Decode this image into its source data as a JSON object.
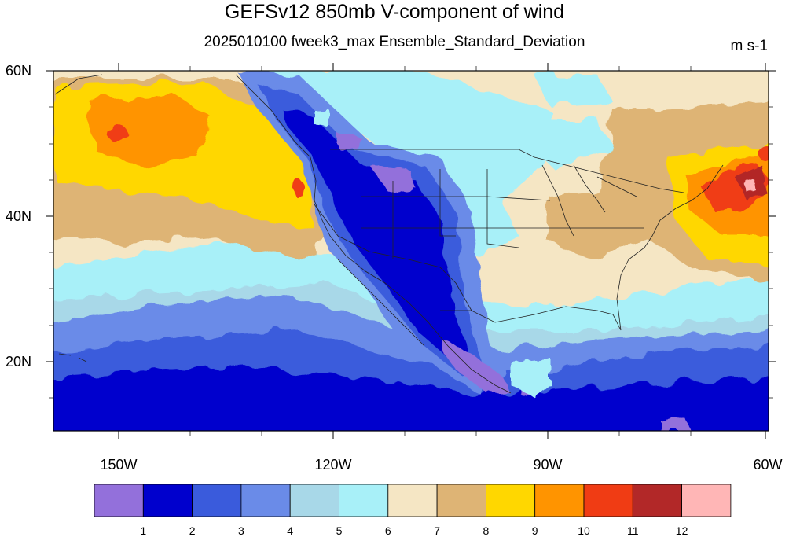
{
  "title": "GEFSv12 850mb V-component of wind",
  "subtitle": "2025010100 fweek3_max Ensemble_Standard_Deviation",
  "units": "m s-1",
  "lat_labels": [
    "60N",
    "40N",
    "20N"
  ],
  "lon_labels": [
    "150W",
    "120W",
    "90W",
    "60W"
  ],
  "colorbar": {
    "labels": [
      "1",
      "2",
      "3",
      "4",
      "5",
      "6",
      "7",
      "8",
      "9",
      "10",
      "11",
      "12"
    ],
    "colors": [
      "#9370DB",
      "#0000CD",
      "#3A5BDC",
      "#6A8BE8",
      "#A8D8E8",
      "#A8F0F8",
      "#F5E6C4",
      "#DEB475",
      "#FFD700",
      "#FF9400",
      "#F03C14",
      "#B22828",
      "#FFB6B6"
    ]
  },
  "map_extent": {
    "lon": [
      -160,
      -60
    ],
    "lat": [
      10,
      60
    ]
  }
}
